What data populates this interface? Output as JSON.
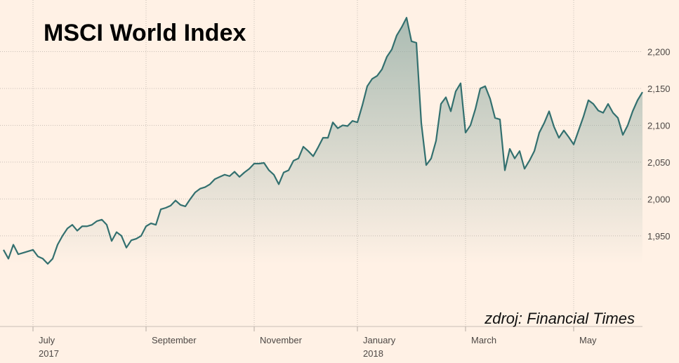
{
  "chart_data": {
    "type": "area",
    "title": "MSCI World Index",
    "annotation": "zdroj: Financial Times",
    "color": "#33706f",
    "fill_color": "#8faaa2",
    "grid": true,
    "ylim": [
      1827,
      2270
    ],
    "yticks": [
      {
        "value": 1950,
        "label": "1,950"
      },
      {
        "value": 2000,
        "label": "2,000"
      },
      {
        "value": 2050,
        "label": "2,050"
      },
      {
        "value": 2100,
        "label": "2,100"
      },
      {
        "value": 2150,
        "label": "2,150"
      },
      {
        "value": 2200,
        "label": "2,200"
      }
    ],
    "categories": [
      null,
      null,
      null,
      null,
      null,
      null,
      "July\n2017",
      null,
      null,
      null,
      null,
      null,
      null,
      null,
      null,
      null,
      null,
      null,
      null,
      null,
      null,
      null,
      null,
      null,
      null,
      null,
      null,
      null,
      null,
      "September",
      null,
      null,
      null,
      null,
      null,
      null,
      null,
      null,
      null,
      null,
      null,
      null,
      null,
      null,
      null,
      null,
      null,
      null,
      null,
      null,
      null,
      "November",
      null,
      null,
      null,
      null,
      null,
      null,
      null,
      null,
      null,
      null,
      null,
      null,
      null,
      null,
      null,
      null,
      null,
      null,
      null,
      null,
      "January\n2018",
      null,
      null,
      null,
      null,
      null,
      null,
      null,
      null,
      null,
      null,
      null,
      null,
      null,
      null,
      null,
      null,
      null,
      null,
      null,
      null,
      null,
      "March",
      null,
      null,
      null,
      null,
      null,
      null,
      null,
      null,
      null,
      null,
      null,
      null,
      null,
      null,
      null,
      null,
      null,
      null,
      null,
      null,
      null,
      "May",
      null,
      null,
      null,
      null,
      null,
      null,
      null,
      null,
      null,
      null,
      null,
      null,
      null,
      null
    ],
    "values": [
      1931,
      1919,
      1938,
      1925,
      1927,
      1929,
      1931,
      1922,
      1919,
      1912,
      1919,
      1938,
      1950,
      1960,
      1965,
      1957,
      1963,
      1963,
      1965,
      1970,
      1972,
      1965,
      1943,
      1955,
      1950,
      1934,
      1944,
      1946,
      1950,
      1963,
      1967,
      1965,
      1986,
      1988,
      1991,
      1998,
      1992,
      1990,
      2000,
      2009,
      2014,
      2016,
      2020,
      2027,
      2030,
      2033,
      2031,
      2037,
      2030,
      2036,
      2041,
      2048,
      2048,
      2049,
      2039,
      2033,
      2020,
      2036,
      2039,
      2052,
      2055,
      2071,
      2065,
      2058,
      2070,
      2083,
      2083,
      2104,
      2096,
      2100,
      2099,
      2106,
      2104,
      2127,
      2153,
      2163,
      2167,
      2176,
      2193,
      2203,
      2222,
      2233,
      2246,
      2214,
      2212,
      2103,
      2046,
      2055,
      2079,
      2129,
      2138,
      2119,
      2146,
      2157,
      2090,
      2100,
      2122,
      2150,
      2153,
      2136,
      2110,
      2108,
      2039,
      2068,
      2055,
      2065,
      2041,
      2052,
      2065,
      2090,
      2103,
      2119,
      2098,
      2083,
      2093,
      2084,
      2074,
      2093,
      2112,
      2134,
      2129,
      2120,
      2117,
      2129,
      2117,
      2110,
      2087,
      2100,
      2119,
      2134,
      2145
    ]
  }
}
